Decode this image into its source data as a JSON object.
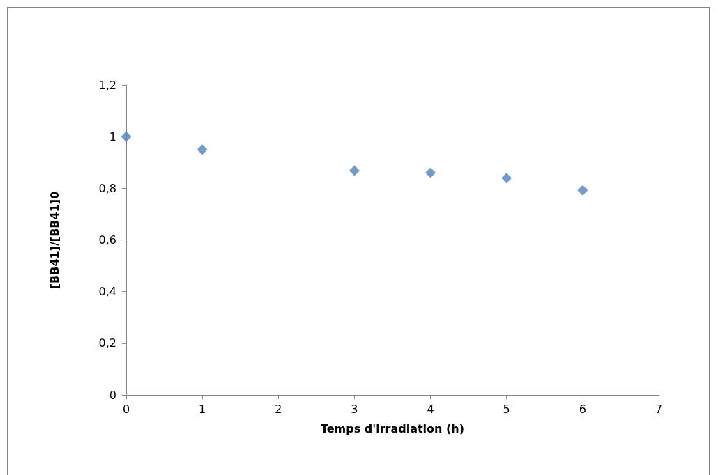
{
  "chart_data": {
    "type": "scatter",
    "xlabel": "Temps d'irradiation (h)",
    "ylabel": "[BB41]/[BB41]0",
    "x": [
      0,
      1,
      3,
      4,
      5,
      6
    ],
    "series": [
      {
        "color": "#4f81bd",
        "values": [
          1.0,
          0.95,
          0.868,
          0.86,
          0.839,
          0.792
        ]
      }
    ],
    "marker": "diamond",
    "grid": false,
    "xlim": [
      0,
      7
    ],
    "xticks": [
      0,
      1,
      2,
      3,
      4,
      5,
      6,
      7
    ],
    "ylim": [
      0,
      1.2
    ],
    "yticks": [
      0,
      {
        "value": 0.2,
        "label": "0,2"
      },
      {
        "value": 0.4,
        "label": "0,4"
      },
      {
        "value": 0.6,
        "label": "0,6"
      },
      {
        "value": 0.8,
        "label": "0,8"
      },
      1,
      {
        "value": 1.2,
        "label": "1,2"
      }
    ]
  }
}
